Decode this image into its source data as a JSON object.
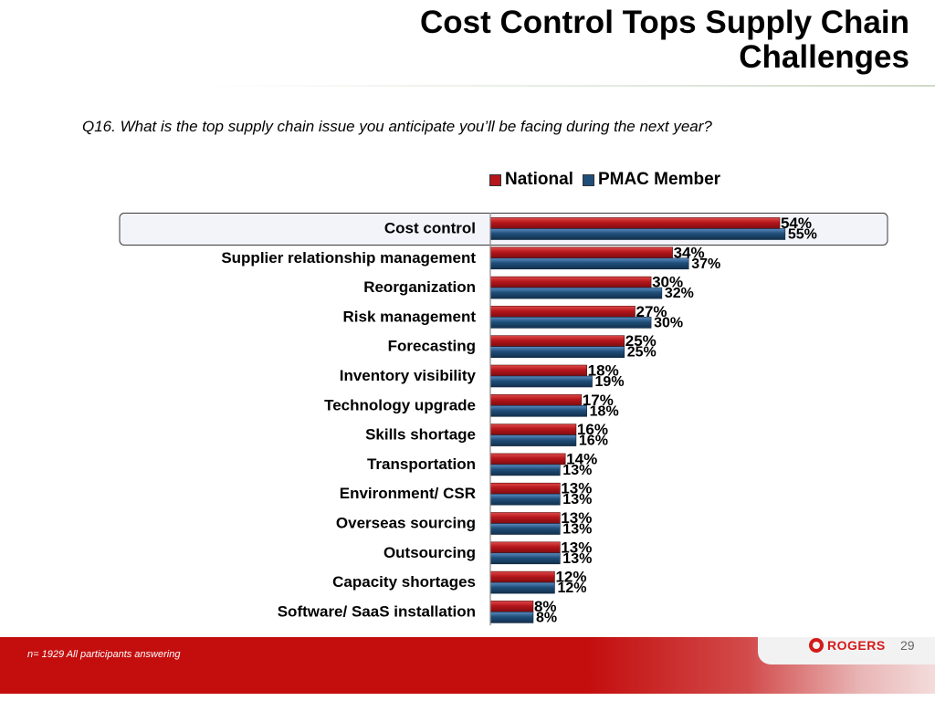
{
  "slide": {
    "title_line1": "Cost Control Tops Supply Chain",
    "title_line2": "Challenges",
    "question": "Q16. What is the top supply chain issue you anticipate you’ll be facing during the next year?",
    "footnote": "n= 1929 All participants answering",
    "logo_text": "ROGERS",
    "page_number": "29"
  },
  "colors": {
    "national": "#b4161b",
    "pmac": "#1f4e79",
    "highlight_box_fill": "#f3f4f9",
    "highlight_box_border": "#3a3a3a"
  },
  "chart_data": {
    "type": "bar",
    "orientation": "horizontal",
    "categories": [
      "Cost control",
      "Supplier relationship management",
      "Reorganization",
      "Risk management",
      "Forecasting",
      "Inventory visibility",
      "Technology upgrade",
      "Skills shortage",
      "Transportation",
      "Environment/ CSR",
      "Overseas sourcing",
      "Outsourcing",
      "Capacity shortages",
      "Software/ SaaS installation"
    ],
    "series": [
      {
        "name": "National",
        "values": [
          54,
          34,
          30,
          27,
          25,
          18,
          17,
          16,
          14,
          13,
          13,
          13,
          12,
          8
        ]
      },
      {
        "name": "PMAC Member",
        "values": [
          55,
          37,
          32,
          30,
          25,
          19,
          18,
          16,
          13,
          13,
          13,
          13,
          12,
          8
        ]
      }
    ],
    "value_suffix": "%",
    "highlighted_category": "Cost control",
    "legend_position": "top",
    "grid": false
  }
}
